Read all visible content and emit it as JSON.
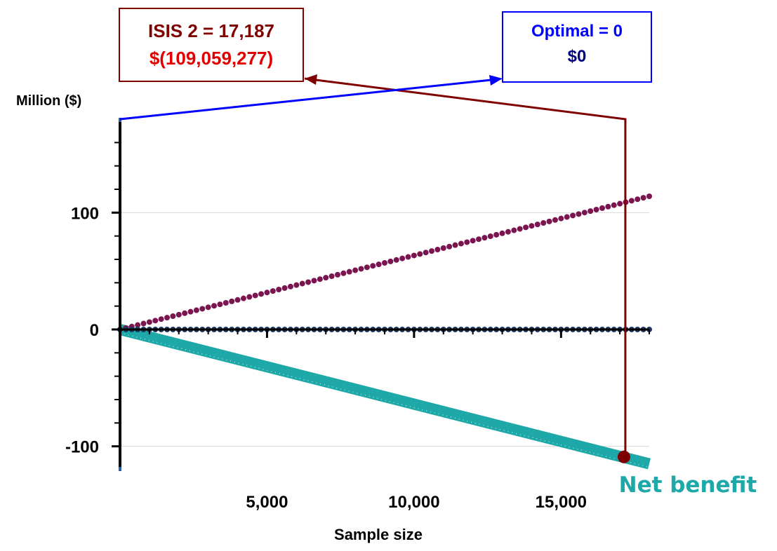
{
  "chart_data": {
    "type": "line",
    "ylabel": "Million ($)",
    "xlabel": "Sample size",
    "x_ticks": [
      5000,
      10000,
      15000
    ],
    "x_tick_labels": [
      "5,000",
      "10,000",
      "15,000"
    ],
    "y_ticks": [
      -100,
      0,
      100
    ],
    "y_tick_labels": [
      "-100",
      "0",
      "100"
    ],
    "xlim": [
      0,
      18000
    ],
    "ylim": [
      -120,
      180
    ],
    "grid": "horizontal",
    "series": [
      {
        "key": "cost",
        "color": "#7a1550",
        "start": [
          0,
          0
        ],
        "end": [
          18000,
          114
        ]
      },
      {
        "key": "optimal",
        "color": "#1f3864",
        "start": [
          0,
          0
        ],
        "end": [
          18000,
          0
        ]
      },
      {
        "name": "Net benefit",
        "color": "#1ea8a8",
        "start": [
          0,
          0
        ],
        "end": [
          18000,
          -115
        ]
      }
    ],
    "annotations": {
      "isis2": {
        "line1": "ISIS 2 = 17,187",
        "line2": "$(109,059,277)",
        "x": 17187,
        "y": -109.06,
        "color": "#7f0000",
        "value_color": "#e00000"
      },
      "optimal": {
        "line1": "Optimal = 0",
        "line2": "$0",
        "x": 0,
        "y": 0,
        "color": "#0000ff",
        "value_color": "#000080"
      }
    },
    "net_benefit_label": "Net benefit",
    "net_benefit_color": "#1ea8a8"
  }
}
